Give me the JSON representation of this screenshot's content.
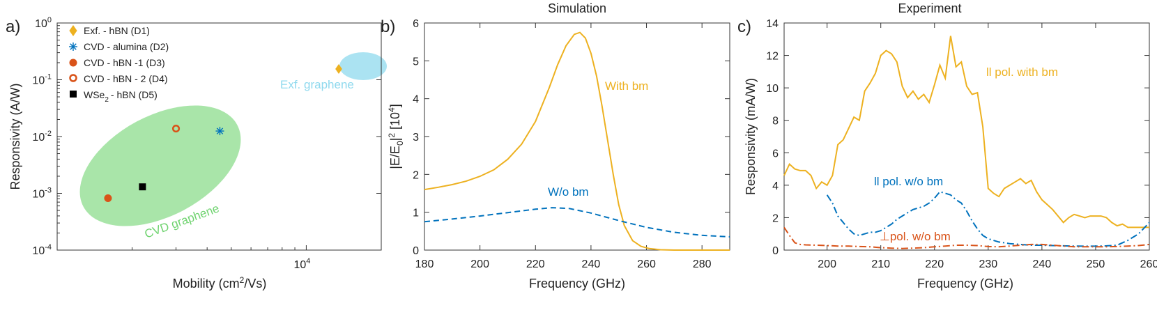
{
  "figure": {
    "panel_letters": [
      "a)",
      "b)",
      "c)"
    ]
  },
  "chart_data": [
    {
      "panel": "a)",
      "type": "scatter",
      "xlabel": "Mobility (cm",
      "xlabel_sup": "2",
      "xlabel_end": "/Vs)",
      "ylabel": "Responsivity (A/W)",
      "x_scale": "log",
      "y_scale": "log",
      "xlim": [
        1000,
        20000
      ],
      "ylim": [
        0.0001,
        1
      ],
      "y_ticks": [
        {
          "value": 0.0001,
          "base": "10",
          "exp": "-4"
        },
        {
          "value": 0.001,
          "base": "10",
          "exp": "-3"
        },
        {
          "value": 0.01,
          "base": "10",
          "exp": "-2"
        },
        {
          "value": 0.1,
          "base": "10",
          "exp": "-1"
        },
        {
          "value": 1,
          "base": "10",
          "exp": "0"
        }
      ],
      "x_ticks": [
        {
          "value": 10000,
          "base": "10",
          "exp": "4"
        }
      ],
      "series": [
        {
          "name": "Exf. - hBN (D1)",
          "marker": "diamond",
          "color": "#EDB120",
          "x": 13500,
          "y": 0.155
        },
        {
          "name": "CVD - alumina (D2)",
          "marker": "asterisk",
          "color": "#0072BD",
          "x": 4500,
          "y": 0.0125
        },
        {
          "name": "CVD - hBN -1 (D3)",
          "marker": "circle",
          "color": "#D95319",
          "x": 1600,
          "y": 0.00082
        },
        {
          "name": "CVD - hBN - 2 (D4)",
          "marker": "ring",
          "color": "#D95319",
          "x": 3000,
          "y": 0.0138
        },
        {
          "name": "- hBN (D5)",
          "name_prefix": "WSe",
          "name_sub": "2",
          "marker": "square",
          "color": "#000000",
          "x": 2200,
          "y": 0.0013
        }
      ],
      "regions": [
        {
          "label": "CVD graphene",
          "color": "#6FD36F"
        },
        {
          "label": "Exf. graphene",
          "color": "#8FD9EE"
        }
      ],
      "legend_position": "top-left"
    },
    {
      "panel": "b)",
      "type": "line",
      "title": "Simulation",
      "xlabel": "Frequency (GHz)",
      "ylabel_main": "|E/E",
      "ylabel_sub": "0",
      "ylabel_mid": "|",
      "ylabel_sup": "2",
      "ylabel_unit": " [10",
      "ylabel_unit_sup": "4",
      "ylabel_end": "]",
      "xlim": [
        180,
        290
      ],
      "ylim": [
        0,
        6
      ],
      "x_ticks": [
        180,
        200,
        220,
        240,
        260,
        280
      ],
      "y_ticks": [
        0,
        1,
        2,
        3,
        4,
        5,
        6
      ],
      "series": [
        {
          "name": "With bm",
          "color": "#EDB120",
          "style": "solid",
          "x": [
            180,
            185,
            190,
            195,
            200,
            205,
            210,
            215,
            220,
            225,
            228,
            231,
            234,
            236,
            238,
            240,
            242,
            244,
            246,
            248,
            250,
            252,
            255,
            258,
            261,
            265,
            270,
            280,
            290
          ],
          "y": [
            1.6,
            1.66,
            1.73,
            1.82,
            1.95,
            2.12,
            2.4,
            2.8,
            3.4,
            4.3,
            4.9,
            5.4,
            5.7,
            5.75,
            5.6,
            5.2,
            4.6,
            3.8,
            2.9,
            2.0,
            1.2,
            0.65,
            0.25,
            0.1,
            0.04,
            0.01,
            0.0,
            0.0,
            0.0
          ]
        },
        {
          "name": "W/o bm",
          "color": "#0072BD",
          "style": "dashed",
          "x": [
            180,
            190,
            200,
            210,
            220,
            226,
            232,
            240,
            250,
            260,
            270,
            280,
            290
          ],
          "y": [
            0.75,
            0.82,
            0.9,
            0.99,
            1.08,
            1.12,
            1.1,
            0.98,
            0.78,
            0.6,
            0.47,
            0.39,
            0.35
          ]
        }
      ]
    },
    {
      "panel": "c)",
      "type": "line",
      "title": "Experiment",
      "xlabel": "Frequency (GHz)",
      "ylabel": "Responsivity (mA/W)",
      "xlim": [
        192,
        260
      ],
      "ylim": [
        0,
        14
      ],
      "x_ticks": [
        200,
        210,
        220,
        230,
        240,
        250,
        260
      ],
      "y_ticks": [
        0,
        2,
        4,
        6,
        8,
        10,
        12,
        14
      ],
      "series": [
        {
          "name": "ll pol. with bm",
          "color": "#EDB120",
          "style": "solid",
          "x": [
            192,
            193,
            194,
            195,
            196,
            197,
            198,
            199,
            200,
            201,
            202,
            203,
            204,
            205,
            206,
            207,
            208,
            209,
            210,
            211,
            212,
            213,
            214,
            215,
            216,
            217,
            218,
            219,
            220,
            221,
            222,
            223,
            224,
            225,
            226,
            227,
            228,
            229,
            230,
            231,
            232,
            233,
            234,
            235,
            236,
            237,
            238,
            239,
            240,
            241,
            242,
            243,
            244,
            245,
            246,
            247,
            248,
            249,
            250,
            251,
            252,
            253,
            254,
            255,
            256,
            257,
            258,
            259,
            260
          ],
          "y": [
            4.6,
            5.3,
            5.0,
            4.9,
            4.9,
            4.6,
            3.8,
            4.2,
            4.0,
            4.6,
            6.5,
            6.8,
            7.5,
            8.2,
            8.0,
            9.8,
            10.3,
            10.9,
            12.0,
            12.3,
            12.1,
            11.6,
            10.1,
            9.4,
            9.8,
            9.3,
            9.6,
            9.1,
            10.2,
            11.4,
            10.6,
            13.2,
            11.3,
            11.6,
            10.1,
            9.6,
            9.7,
            7.6,
            3.8,
            3.5,
            3.3,
            3.8,
            4.0,
            4.2,
            4.4,
            4.1,
            4.3,
            3.6,
            3.1,
            2.8,
            2.5,
            2.1,
            1.7,
            2.0,
            2.2,
            2.1,
            2.0,
            2.1,
            2.1,
            2.1,
            2.0,
            1.7,
            1.5,
            1.6,
            1.4,
            1.4,
            1.4,
            1.4,
            1.4
          ]
        },
        {
          "name": "ll pol. w/o bm",
          "color": "#0072BD",
          "style": "dashdot",
          "x": [
            200,
            201,
            202,
            203,
            204,
            205,
            206,
            207,
            208,
            209,
            210,
            211,
            212,
            213,
            214,
            215,
            216,
            217,
            218,
            219,
            220,
            221,
            222,
            223,
            224,
            225,
            226,
            227,
            228,
            229,
            230,
            232,
            234,
            236,
            238,
            240,
            242,
            244,
            246,
            248,
            250,
            252,
            254,
            256,
            258,
            260
          ],
          "y": [
            3.4,
            2.9,
            2.1,
            1.7,
            1.3,
            1.0,
            0.9,
            1.0,
            1.1,
            1.1,
            1.2,
            1.4,
            1.6,
            1.9,
            2.1,
            2.3,
            2.5,
            2.6,
            2.7,
            2.9,
            3.2,
            3.6,
            3.5,
            3.4,
            3.1,
            2.9,
            2.4,
            1.8,
            1.3,
            0.9,
            0.7,
            0.5,
            0.4,
            0.35,
            0.3,
            0.3,
            0.28,
            0.26,
            0.25,
            0.24,
            0.24,
            0.26,
            0.3,
            0.6,
            1.0,
            1.7
          ]
        },
        {
          "name": "pol. w/o bm",
          "name_prefix": "⊥",
          "color": "#D95319",
          "style": "dashdot",
          "x": [
            192,
            193,
            194,
            195,
            196,
            198,
            200,
            202,
            204,
            206,
            208,
            210,
            212,
            214,
            216,
            218,
            220,
            222,
            224,
            226,
            228,
            230,
            232,
            234,
            236,
            238,
            240,
            242,
            244,
            246,
            248,
            250,
            252,
            254,
            256,
            258,
            260
          ],
          "y": [
            1.4,
            0.9,
            0.45,
            0.35,
            0.32,
            0.3,
            0.28,
            0.25,
            0.25,
            0.22,
            0.2,
            0.15,
            0.12,
            0.1,
            0.12,
            0.15,
            0.2,
            0.25,
            0.3,
            0.3,
            0.28,
            0.22,
            0.2,
            0.25,
            0.3,
            0.35,
            0.35,
            0.3,
            0.25,
            0.2,
            0.2,
            0.2,
            0.2,
            0.22,
            0.25,
            0.28,
            0.35
          ]
        }
      ]
    }
  ]
}
